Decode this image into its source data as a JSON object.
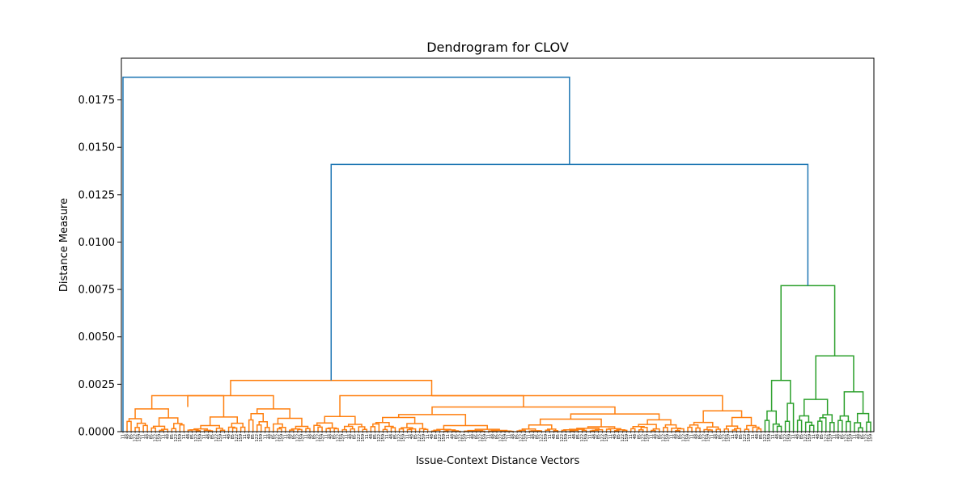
{
  "chart_data": {
    "type": "dendrogram",
    "title": "Dendrogram for CLOV",
    "xlabel": "Issue-Context Distance Vectors",
    "ylabel": "Distance Measure",
    "ylim": [
      0,
      0.0197
    ],
    "y_ticks": [
      0.0,
      0.0025,
      0.005,
      0.0075,
      0.01,
      0.0125,
      0.015,
      0.0175
    ],
    "y_tick_labels": [
      "0.0000",
      "0.0025",
      "0.0050",
      "0.0075",
      "0.0100",
      "0.0125",
      "0.0150",
      "0.0175"
    ],
    "leaf_count": 185,
    "grid": false,
    "colors": {
      "link_above_threshold": "#1f77b4",
      "cluster_1": "#ff7f0e",
      "cluster_2": "#2ca02c"
    },
    "clusters": [
      {
        "color_key": "cluster_1",
        "leaf_range": [
          1,
          157
        ],
        "merge_height": 0.0027
      },
      {
        "color_key": "cluster_2",
        "leaf_range": [
          158,
          184
        ],
        "merge_height": 0.0077
      }
    ],
    "links": [
      {
        "color_key": "link_above_threshold",
        "left": 0.0,
        "right": 0.0141,
        "height": 0.0187,
        "description": "root merge: leaf 0 with rest"
      },
      {
        "color_key": "link_above_threshold",
        "left": 0.0027,
        "right": 0.0077,
        "height": 0.0141
      },
      {
        "color_key": "cluster_1",
        "left": 0.0019,
        "right": 0.0019,
        "height": 0.0027
      },
      {
        "color_key": "cluster_1",
        "left": 0.0008,
        "right": 0.0012,
        "height": 0.0019
      },
      {
        "color_key": "cluster_1",
        "left": 0.0008,
        "right": 0.0013,
        "height": 0.0019
      },
      {
        "color_key": "cluster_1",
        "left": 0.0009,
        "right": 0.0011,
        "height": 0.0013
      },
      {
        "color_key": "cluster_2",
        "left": 0.0027,
        "right": 0.004,
        "height": 0.0077
      },
      {
        "color_key": "cluster_2",
        "left": 0.0017,
        "right": 0.0021,
        "height": 0.004
      }
    ]
  }
}
